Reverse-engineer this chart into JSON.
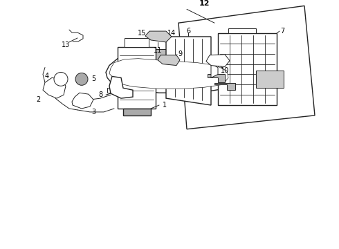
{
  "background_color": "#ffffff",
  "line_color": "#222222",
  "label_color": "#000000",
  "fig_width": 4.9,
  "fig_height": 3.6,
  "dpi": 100
}
